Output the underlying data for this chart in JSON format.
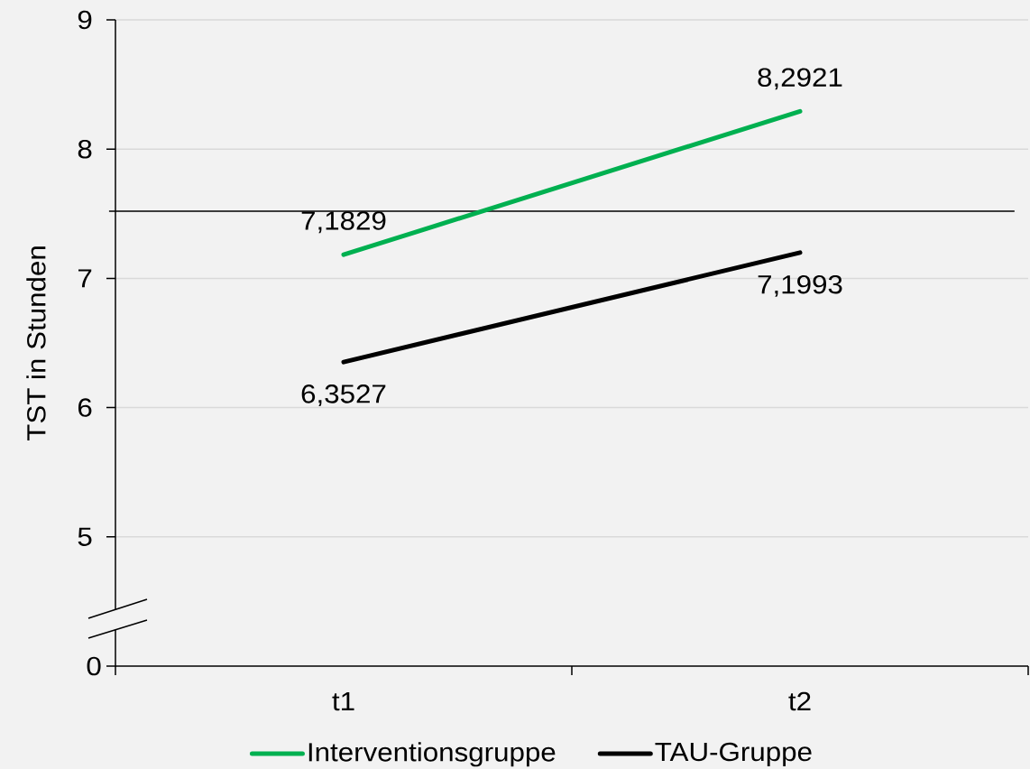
{
  "chart_data": {
    "type": "line",
    "ylabel": "TST in Stunden",
    "categories": [
      "t1",
      "t2"
    ],
    "series": [
      {
        "name": "Interventionsgruppe",
        "color": "#00b050",
        "values": [
          7.1829,
          8.2921
        ],
        "value_labels": [
          "7,1829",
          "8,2921"
        ]
      },
      {
        "name": "TAU-Gruppe",
        "color": "#000000",
        "values": [
          6.3527,
          7.1993
        ],
        "value_labels": [
          "6,3527",
          "7,1993"
        ]
      }
    ],
    "ylim": [
      4,
      9
    ],
    "yticks": [
      5,
      6,
      7,
      8,
      9
    ],
    "annotations": [
      "0"
    ],
    "ref_lines": [
      {
        "axis": "y",
        "value": 7.52
      }
    ],
    "grid": "y",
    "legend": "bottom",
    "marker": "none",
    "line_style": "solid"
  }
}
